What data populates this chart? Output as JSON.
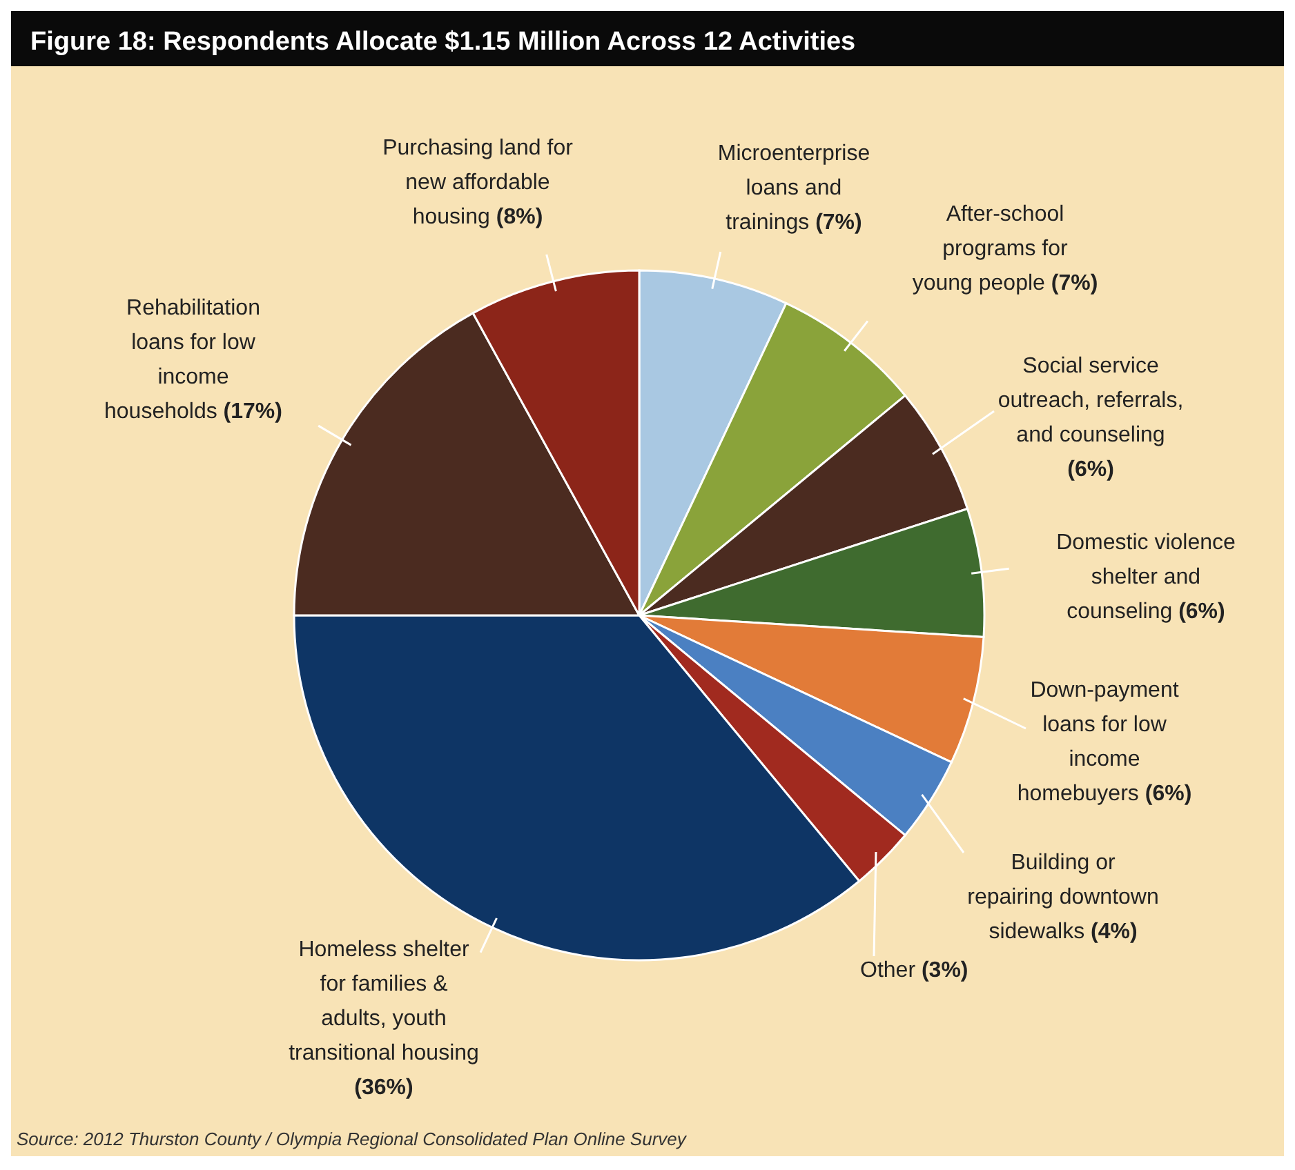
{
  "chart_data": {
    "type": "pie",
    "title": "Figure 18:  Respondents Allocate $1.15 Million Across 12 Activities",
    "categories": [
      "Microenterprise loans and trainings",
      "After-school programs for young people",
      "Social service outreach, referrals, and counseling",
      "Domestic violence shelter and counseling",
      "Down-payment loans for low income homebuyers",
      "Building or repairing downtown sidewalks",
      "Other",
      "Homeless shelter for families & adults, youth transitional housing",
      "Rehabilitation loans for low income households",
      "Purchasing land for new affordable housing"
    ],
    "values": [
      7,
      7,
      6,
      6,
      6,
      4,
      3,
      36,
      17,
      8
    ],
    "value_labels": [
      "(7%)",
      "(7%)",
      "(6%)",
      "(6%)",
      "(6%)",
      "(4%)",
      "(3%)",
      "(36%)",
      "(17%)",
      "(8%)"
    ],
    "colors": [
      "#a9c8e2",
      "#8aa33a",
      "#4b2b20",
      "#3f6b2f",
      "#e27b38",
      "#4b80c2",
      "#a12a1f",
      "#0e3565",
      "#4b2b20",
      "#8c2519"
    ],
    "annotations": [
      "Source: 2012 Thurston County / Olympia Regional Consolidated Plan Online Survey"
    ]
  }
}
